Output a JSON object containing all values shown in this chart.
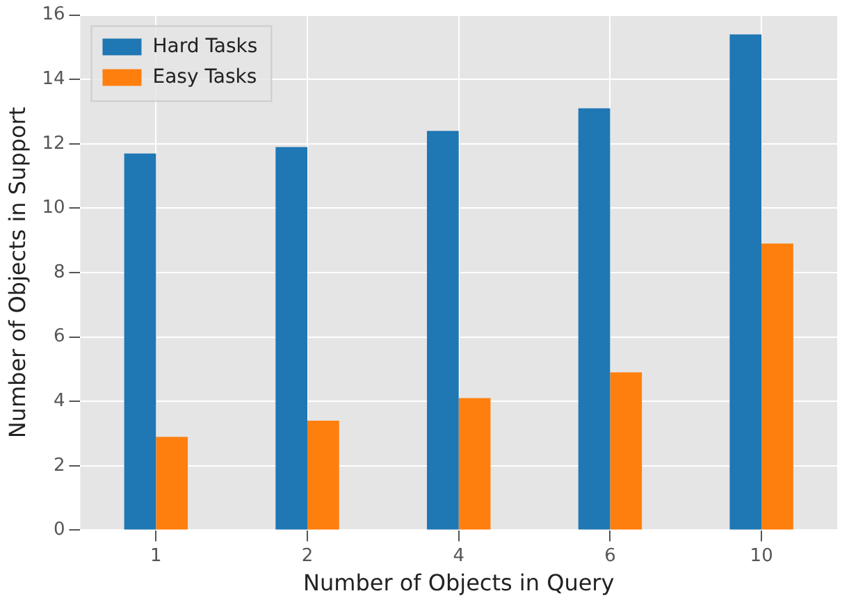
{
  "chart_data": {
    "type": "bar",
    "xlabel": "Number of Objects in Query",
    "ylabel": "Number of Objects in Support",
    "categories": [
      "1",
      "2",
      "4",
      "6",
      "10"
    ],
    "series": [
      {
        "name": "Hard Tasks",
        "color": "#1f77b4",
        "values": [
          11.7,
          11.9,
          12.4,
          13.1,
          15.4
        ]
      },
      {
        "name": "Easy Tasks",
        "color": "#ff7f0e",
        "values": [
          2.9,
          3.4,
          4.1,
          4.9,
          8.9
        ]
      }
    ],
    "ylim": [
      0,
      16
    ],
    "yticks": [
      0,
      2,
      4,
      6,
      8,
      10,
      12,
      14,
      16
    ],
    "grid": true,
    "legend": "top left"
  }
}
